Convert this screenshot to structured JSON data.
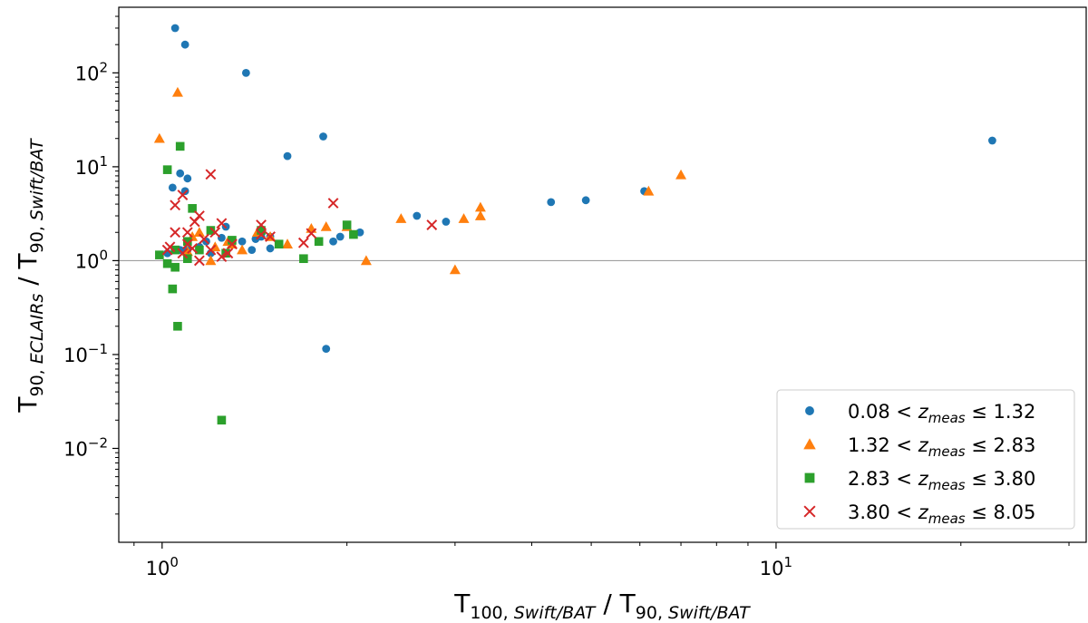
{
  "chart_data": {
    "type": "scatter",
    "xscale": "log",
    "yscale": "log",
    "xlim": [
      0.85,
      32
    ],
    "ylim": [
      0.001,
      500
    ],
    "xlabel": {
      "base": "T",
      "sub1": "100, ",
      "sub1_italic": "Swift/BAT",
      "mid": " / T",
      "sub2": "90, ",
      "sub2_italic": "Swift/BAT"
    },
    "ylabel": {
      "base": "T",
      "sub1": "90, ",
      "sub1_italic": "ECLAIRs",
      "mid": " / T",
      "sub2": "90, ",
      "sub2_italic": "Swift/BAT"
    },
    "x_ticks": [
      {
        "value": 1,
        "base": "10",
        "exp": "0"
      },
      {
        "value": 10,
        "base": "10",
        "exp": "1"
      }
    ],
    "y_ticks": [
      {
        "value": 0.01,
        "base": "10",
        "exp": "−2"
      },
      {
        "value": 0.1,
        "base": "10",
        "exp": "−1"
      },
      {
        "value": 1,
        "base": "10",
        "exp": "0"
      },
      {
        "value": 10,
        "base": "10",
        "exp": "1"
      },
      {
        "value": 100,
        "base": "10",
        "exp": "2"
      }
    ],
    "reference_line": {
      "y": 1,
      "color": "#a0a0a0"
    },
    "legend_position": "lower right",
    "series": [
      {
        "name": "0.08 < z_meas ≤ 1.32",
        "legend": {
          "lo": "0.08 < ",
          "var": "z",
          "sub": "meas",
          "hi": " ≤ 1.32"
        },
        "marker": "circle",
        "color": "#1f77b4",
        "points": [
          [
            1.05,
            300
          ],
          [
            1.09,
            200
          ],
          [
            1.37,
            100
          ],
          [
            1.83,
            21
          ],
          [
            1.6,
            13
          ],
          [
            1.07,
            8.5
          ],
          [
            1.1,
            7.5
          ],
          [
            1.04,
            6
          ],
          [
            1.09,
            5.5
          ],
          [
            6.1,
            5.5
          ],
          [
            4.3,
            4.2
          ],
          [
            4.9,
            4.4
          ],
          [
            22.5,
            19
          ],
          [
            2.6,
            3
          ],
          [
            2.9,
            2.6
          ],
          [
            1.27,
            2.3
          ],
          [
            1.45,
            1.8
          ],
          [
            1.5,
            1.8
          ],
          [
            1.42,
            1.7
          ],
          [
            2.1,
            2.0
          ],
          [
            1.95,
            1.8
          ],
          [
            1.25,
            1.75
          ],
          [
            1.35,
            1.6
          ],
          [
            1.4,
            1.3
          ],
          [
            1.5,
            1.35
          ],
          [
            1.9,
            1.6
          ],
          [
            1.8,
            1.6
          ],
          [
            1.15,
            1.4
          ],
          [
            1.1,
            1.3
          ],
          [
            1.02,
            1.2
          ],
          [
            1.07,
            1.3
          ],
          [
            1.2,
            1.2
          ],
          [
            1.85,
            0.115
          ],
          [
            1.3,
            1.5
          ],
          [
            1.18,
            1.6
          ]
        ]
      },
      {
        "name": "1.32 < z_meas ≤ 2.83",
        "legend": {
          "lo": "1.32 < ",
          "var": "z",
          "sub": "meas",
          "hi": " ≤ 2.83"
        },
        "marker": "triangle",
        "color": "#ff7f0e",
        "points": [
          [
            1.06,
            62
          ],
          [
            0.99,
            20
          ],
          [
            7.0,
            8.2
          ],
          [
            6.2,
            5.5
          ],
          [
            3.3,
            3.7
          ],
          [
            3.3,
            3.0
          ],
          [
            3.1,
            2.8
          ],
          [
            2.45,
            2.8
          ],
          [
            2.15,
            1.0
          ],
          [
            3.0,
            0.8
          ],
          [
            1.75,
            2.2
          ],
          [
            1.85,
            2.3
          ],
          [
            2.0,
            2.3
          ],
          [
            1.5,
            1.8
          ],
          [
            1.43,
            2.0
          ],
          [
            1.28,
            1.6
          ],
          [
            1.22,
            1.4
          ],
          [
            1.15,
            2.0
          ],
          [
            1.12,
            1.8
          ],
          [
            1.1,
            1.25
          ],
          [
            1.2,
            1.0
          ],
          [
            1.6,
            1.5
          ],
          [
            1.3,
            1.5
          ],
          [
            1.35,
            1.3
          ]
        ]
      },
      {
        "name": "2.83 < z_meas ≤ 3.80",
        "legend": {
          "lo": "2.83 < ",
          "var": "z",
          "sub": "meas",
          "hi": " ≤ 3.80"
        },
        "marker": "square",
        "color": "#2ca02c",
        "points": [
          [
            1.07,
            16.5
          ],
          [
            1.02,
            9.3
          ],
          [
            1.12,
            3.6
          ],
          [
            0.99,
            1.15
          ],
          [
            1.02,
            0.93
          ],
          [
            1.05,
            0.85
          ],
          [
            1.04,
            0.5
          ],
          [
            1.06,
            0.2
          ],
          [
            1.25,
            0.02
          ],
          [
            1.7,
            1.05
          ],
          [
            1.8,
            1.6
          ],
          [
            2.0,
            2.4
          ],
          [
            2.05,
            1.9
          ],
          [
            1.45,
            2.1
          ],
          [
            1.3,
            1.65
          ],
          [
            1.2,
            2.1
          ],
          [
            1.27,
            1.2
          ],
          [
            1.1,
            1.05
          ],
          [
            1.1,
            1.6
          ],
          [
            1.15,
            1.3
          ],
          [
            1.55,
            1.5
          ],
          [
            1.05,
            1.3
          ]
        ]
      },
      {
        "name": "3.80 < z_meas ≤ 8.05",
        "legend": {
          "lo": "3.80 < ",
          "var": "z",
          "sub": "meas",
          "hi": " ≤ 8.05"
        },
        "marker": "x",
        "color": "#d62728",
        "points": [
          [
            1.2,
            8.3
          ],
          [
            1.9,
            4.1
          ],
          [
            1.05,
            3.9
          ],
          [
            1.08,
            5.0
          ],
          [
            1.15,
            3.0
          ],
          [
            1.25,
            2.5
          ],
          [
            1.05,
            2.0
          ],
          [
            1.1,
            2.0
          ],
          [
            1.1,
            1.5
          ],
          [
            1.13,
            2.6
          ],
          [
            1.45,
            2.4
          ],
          [
            1.45,
            1.9
          ],
          [
            1.5,
            1.8
          ],
          [
            1.75,
            1.95
          ],
          [
            1.7,
            1.55
          ],
          [
            2.75,
            2.4
          ],
          [
            1.2,
            1.3
          ],
          [
            1.25,
            1.1
          ],
          [
            1.15,
            1.0
          ],
          [
            1.02,
            1.3
          ],
          [
            1.08,
            1.2
          ],
          [
            1.3,
            1.5
          ],
          [
            1.17,
            1.7
          ],
          [
            1.22,
            2.0
          ],
          [
            1.03,
            1.4
          ],
          [
            1.12,
            1.35
          ],
          [
            1.28,
            1.2
          ]
        ]
      }
    ]
  }
}
